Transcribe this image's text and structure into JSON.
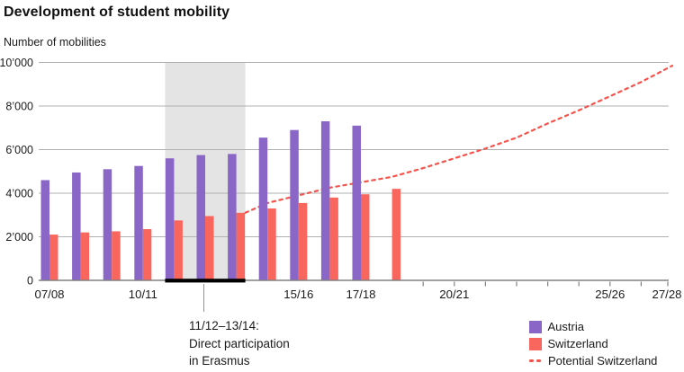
{
  "header": {
    "title": "Development of student mobility"
  },
  "axis": {
    "y_title": "Number of mobilities"
  },
  "chart": {
    "colors": {
      "austria": "#8A67C6",
      "switzerland": "#F9665E",
      "potential_line": "#F4544C",
      "grid": "#B1B1B1",
      "axis": "#808080",
      "band": "#E4E4E4",
      "band_underline": "#000000",
      "text": "#1A1A1A"
    }
  },
  "chart_data": {
    "type": "bar",
    "title": "Development of student mobility",
    "ylabel": "Number of mobilities",
    "ylim": [
      0,
      10000
    ],
    "grid": true,
    "legend_position": "bottom-right",
    "categories": [
      "07/08",
      "08/09",
      "09/10",
      "10/11",
      "11/12",
      "12/13",
      "13/14",
      "14/15",
      "15/16",
      "16/17",
      "17/18",
      "18/19",
      "19/20",
      "20/21",
      "21/22",
      "22/23",
      "23/24",
      "24/25",
      "25/26",
      "26/27",
      "27/28"
    ],
    "x_labels_shown": [
      {
        "index": 0,
        "label": "07/08"
      },
      {
        "index": 3,
        "label": "10/11"
      },
      {
        "index": 8,
        "label": "15/16"
      },
      {
        "index": 10,
        "label": "17/18"
      },
      {
        "index": 13,
        "label": "20/21"
      },
      {
        "index": 18,
        "label": "25/26"
      },
      {
        "index": 20,
        "label": "27/28"
      }
    ],
    "x_axis_small_ticks_at": [
      12,
      13,
      14,
      15,
      16,
      17,
      18,
      19,
      20
    ],
    "y_ticks": [
      {
        "value": 0,
        "label": "0"
      },
      {
        "value": 2000,
        "label": "2’000"
      },
      {
        "value": 4000,
        "label": "4’000"
      },
      {
        "value": 6000,
        "label": "6’000"
      },
      {
        "value": 8000,
        "label": "8’000"
      },
      {
        "value": 10000,
        "label": "10’000"
      }
    ],
    "series": [
      {
        "name": "Austria",
        "type": "bar",
        "color": "#8A67C6",
        "values": [
          4600,
          4950,
          5100,
          5250,
          5600,
          5750,
          5800,
          6550,
          6900,
          7300,
          7100,
          null,
          null,
          null,
          null,
          null,
          null,
          null,
          null,
          null,
          null
        ]
      },
      {
        "name": "Switzerland",
        "type": "bar",
        "color": "#F9665E",
        "values": [
          2100,
          2200,
          2250,
          2350,
          2750,
          2950,
          3100,
          3300,
          3550,
          3800,
          3950,
          4200,
          null,
          null,
          null,
          null,
          null,
          null,
          null,
          null,
          null
        ]
      },
      {
        "name": "Potential Switzerland",
        "type": "line",
        "line_style": "dashed",
        "color": "#F4544C",
        "points": [
          [
            "13/14",
            3100
          ],
          [
            "14/15",
            3550
          ],
          [
            "15/16",
            3900
          ],
          [
            "16/17",
            4250
          ],
          [
            "17/18",
            4500
          ],
          [
            "18/19",
            4750
          ],
          [
            "19/20",
            5150
          ],
          [
            "20/21",
            5600
          ],
          [
            "21/22",
            6050
          ],
          [
            "22/23",
            6550
          ],
          [
            "23/24",
            7200
          ],
          [
            "24/25",
            7800
          ],
          [
            "25/26",
            8450
          ],
          [
            "26/27",
            9100
          ],
          [
            "27/28",
            9850
          ]
        ]
      }
    ],
    "highlight_band": {
      "from": "11/12",
      "to": "13/14"
    }
  },
  "annotation": {
    "line1": "11/12–13/14:",
    "line2": "Direct participation",
    "line3": "in Erasmus"
  },
  "legend": {
    "items": [
      {
        "label": "Austria"
      },
      {
        "label": "Switzerland"
      },
      {
        "label": "Potential Switzerland"
      }
    ]
  }
}
